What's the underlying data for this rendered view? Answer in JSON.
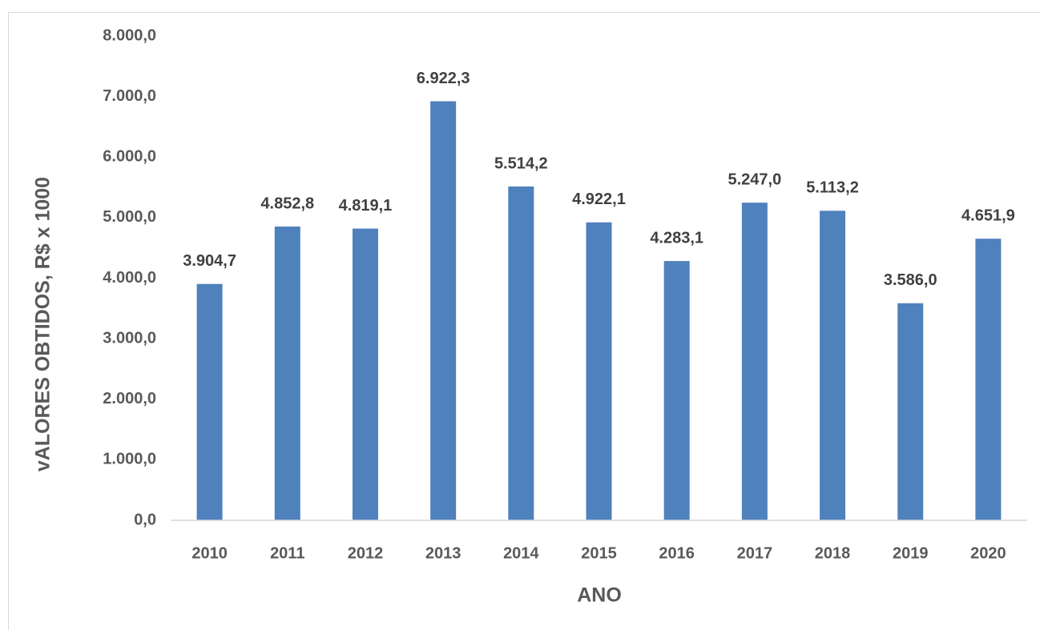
{
  "chart_data": {
    "type": "bar",
    "x_label": "ANO",
    "y_label": "vALORES OBTIDOS, R$ x 1000",
    "categories": [
      "2010",
      "2011",
      "2012",
      "2013",
      "2014",
      "2015",
      "2016",
      "2017",
      "2018",
      "2019",
      "2020"
    ],
    "values": [
      3904.7,
      4852.8,
      4819.1,
      6922.3,
      5514.2,
      4922.1,
      4283.1,
      5247.0,
      5113.2,
      3586.0,
      4651.9
    ],
    "value_labels": [
      "3.904,7",
      "4.852,8",
      "4.819,1",
      "6.922,3",
      "5.514,2",
      "4.922,1",
      "4.283,1",
      "5.247,0",
      "5.113,2",
      "3.586,0",
      "4.651,9"
    ],
    "color": "#4f81bd",
    "ylim": [
      0,
      8000
    ],
    "yticks": [
      {
        "value": 0,
        "label": "0,0"
      },
      {
        "value": 1000,
        "label": "1.000,0"
      },
      {
        "value": 2000,
        "label": "2.000,0"
      },
      {
        "value": 3000,
        "label": "3.000,0"
      },
      {
        "value": 4000,
        "label": "4.000,0"
      },
      {
        "value": 5000,
        "label": "5.000,0"
      },
      {
        "value": 6000,
        "label": "6.000,0"
      },
      {
        "value": 7000,
        "label": "7.000,0"
      },
      {
        "value": 8000,
        "label": "8.000,0"
      }
    ],
    "grid": false
  }
}
